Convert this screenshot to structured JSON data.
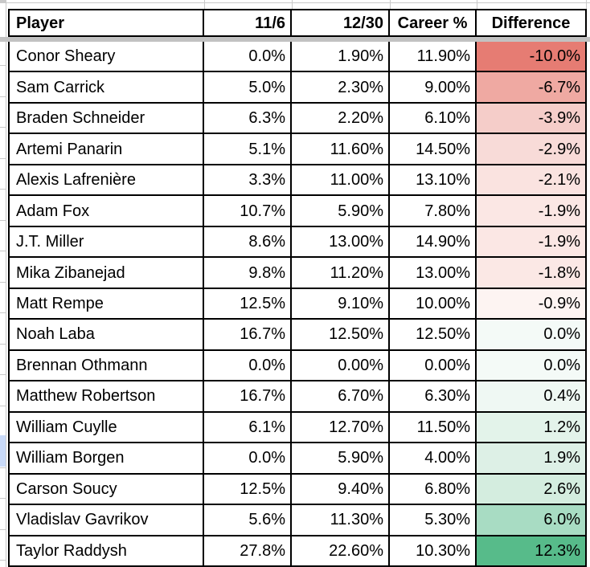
{
  "table": {
    "columns": [
      "Player",
      "11/6",
      "12/30",
      "Career %",
      "Difference"
    ],
    "rows": [
      {
        "player": "Conor Sheary",
        "v1": "0.0%",
        "v2": "1.90%",
        "career": "11.90%",
        "diff": "-10.0%",
        "diff_bg": "#E67C73"
      },
      {
        "player": "Sam Carrick",
        "v1": "5.0%",
        "v2": "2.30%",
        "career": "9.00%",
        "diff": "-6.7%",
        "diff_bg": "#EFA9A2"
      },
      {
        "player": "Braden Schneider",
        "v1": "6.3%",
        "v2": "2.20%",
        "career": "6.10%",
        "diff": "-3.9%",
        "diff_bg": "#F5CDC9"
      },
      {
        "player": "Artemi Panarin",
        "v1": "5.1%",
        "v2": "11.60%",
        "career": "14.50%",
        "diff": "-2.9%",
        "diff_bg": "#F8DBD8"
      },
      {
        "player": "Alexis Lafrenière",
        "v1": "3.3%",
        "v2": "11.00%",
        "career": "13.10%",
        "diff": "-2.1%",
        "diff_bg": "#FAE3E0"
      },
      {
        "player": "Adam Fox",
        "v1": "10.7%",
        "v2": "5.90%",
        "career": "7.80%",
        "diff": "-1.9%",
        "diff_bg": "#FBE7E4"
      },
      {
        "player": "J.T. Miller",
        "v1": "8.6%",
        "v2": "13.00%",
        "career": "14.90%",
        "diff": "-1.9%",
        "diff_bg": "#FBE7E4"
      },
      {
        "player": "Mika Zibanejad",
        "v1": "9.8%",
        "v2": "11.20%",
        "career": "13.00%",
        "diff": "-1.8%",
        "diff_bg": "#FBE8E5"
      },
      {
        "player": "Matt Rempe",
        "v1": "12.5%",
        "v2": "9.10%",
        "career": "10.00%",
        "diff": "-0.9%",
        "diff_bg": "#FDF4F2"
      },
      {
        "player": "Noah Laba",
        "v1": "16.7%",
        "v2": "12.50%",
        "career": "12.50%",
        "diff": "0.0%",
        "diff_bg": "#F4FAF7"
      },
      {
        "player": "Brennan Othmann",
        "v1": "0.0%",
        "v2": "0.00%",
        "career": "0.00%",
        "diff": "0.0%",
        "diff_bg": "#F4FAF7"
      },
      {
        "player": "Matthew Robertson",
        "v1": "16.7%",
        "v2": "6.70%",
        "career": "6.30%",
        "diff": "0.4%",
        "diff_bg": "#EFF8F3"
      },
      {
        "player": "William Cuylle",
        "v1": "6.1%",
        "v2": "12.70%",
        "career": "11.50%",
        "diff": "1.2%",
        "diff_bg": "#E3F3EA"
      },
      {
        "player": "William Borgen",
        "v1": "0.0%",
        "v2": "5.90%",
        "career": "4.00%",
        "diff": "1.9%",
        "diff_bg": "#DDF0E6"
      },
      {
        "player": "Carson Soucy",
        "v1": "12.5%",
        "v2": "9.40%",
        "career": "6.80%",
        "diff": "2.6%",
        "diff_bg": "#D4EDDF"
      },
      {
        "player": "Vladislav Gavrikov",
        "v1": "5.6%",
        "v2": "11.30%",
        "career": "5.30%",
        "diff": "6.0%",
        "diff_bg": "#A8DCC3"
      },
      {
        "player": "Taylor Raddysh",
        "v1": "27.8%",
        "v2": "22.60%",
        "career": "10.30%",
        "diff": "12.3%",
        "diff_bg": "#57BB8A"
      }
    ]
  },
  "conditional_format": {
    "negative_max_color": "#E67C73",
    "positive_max_color": "#57BB8A",
    "midpoint_color": "#FFFFFF"
  },
  "chrome": {
    "table_border_color": "#000000",
    "gridline_color": "#C9C9C9",
    "frozen_divider_color": "#C2C2C2",
    "gutter_selection_color": "#C9DAF8"
  }
}
